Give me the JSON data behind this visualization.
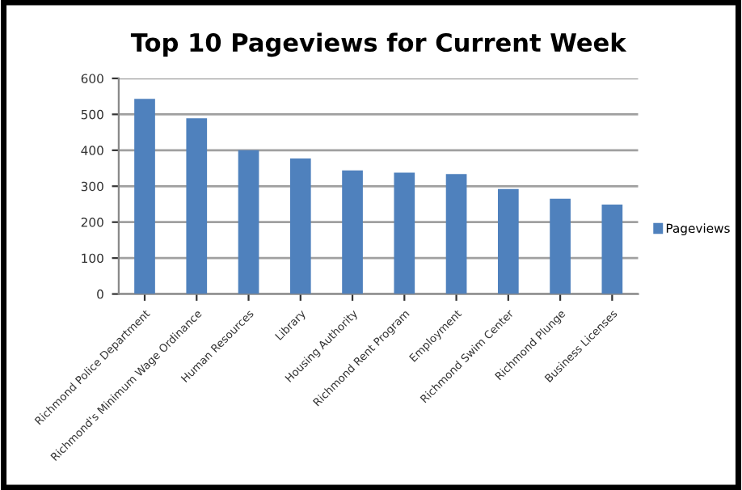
{
  "chart_data": {
    "type": "bar",
    "title": "Top 10 Pageviews for Current Week",
    "categories": [
      "Richmond Police Department",
      "Richmond's Minimum Wage Ordinance",
      "Human Resources",
      "Library",
      "Housing Authority",
      "Richmond Rent Program",
      "Employment",
      "Richmond Swim Center",
      "Richmond Plunge",
      "Business Licenses"
    ],
    "series": [
      {
        "name": "Pageviews",
        "color": "#4f81bd",
        "values": [
          543,
          489,
          400,
          377,
          344,
          338,
          334,
          292,
          265,
          249
        ]
      }
    ],
    "ylim": [
      0,
      600
    ],
    "yticks": [
      0,
      100,
      200,
      300,
      400,
      500,
      600
    ],
    "grid": "y",
    "legend": "right"
  }
}
